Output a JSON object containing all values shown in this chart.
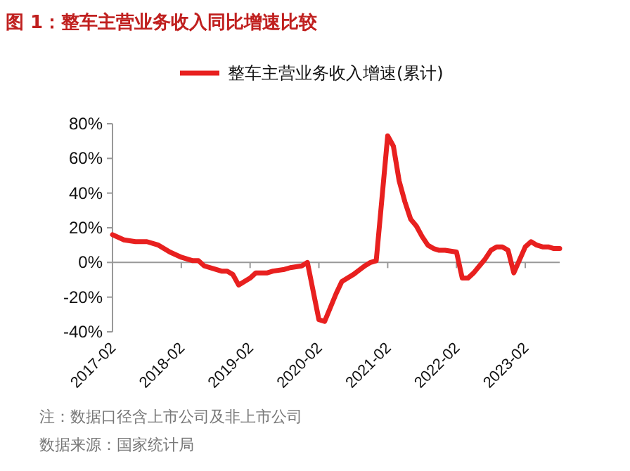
{
  "chart_data": {
    "type": "line",
    "title": "图 1：整车主营业务收入同比增速比较",
    "series": [
      {
        "name": "整车主营业务收入增速(累计)",
        "color": "#e8201f",
        "x": [
          "2017-02",
          "2017-04",
          "2017-06",
          "2017-08",
          "2017-10",
          "2017-12",
          "2018-02",
          "2018-04",
          "2018-05",
          "2018-06",
          "2018-08",
          "2018-09",
          "2018-10",
          "2018-11",
          "2018-12",
          "2019-02",
          "2019-03",
          "2019-05",
          "2019-06",
          "2019-08",
          "2019-09",
          "2019-11",
          "2019-12",
          "2020-02",
          "2020-03",
          "2020-04",
          "2020-05",
          "2020-06",
          "2020-08",
          "2020-10",
          "2020-11",
          "2020-12",
          "2021-02",
          "2021-03",
          "2021-04",
          "2021-05",
          "2021-06",
          "2021-07",
          "2021-08",
          "2021-09",
          "2021-10",
          "2021-11",
          "2021-12",
          "2022-02",
          "2022-03",
          "2022-04",
          "2022-05",
          "2022-06",
          "2022-07",
          "2022-08",
          "2022-09",
          "2022-10",
          "2022-11",
          "2022-12",
          "2023-02",
          "2023-03",
          "2023-04",
          "2023-05",
          "2023-06",
          "2023-07",
          "2023-08"
        ],
        "values": [
          16,
          13,
          12,
          12,
          10,
          6,
          3,
          1,
          1,
          -2,
          -4,
          -5,
          -5,
          -7,
          -13,
          -9,
          -6,
          -6,
          -5,
          -4,
          -3,
          -2,
          0,
          -33,
          -34,
          -26,
          -18,
          -11,
          -7,
          -2,
          0,
          1,
          73,
          67,
          47,
          35,
          25,
          21,
          15,
          10,
          8,
          7,
          7,
          6,
          -9,
          -9,
          -6,
          -2,
          2,
          7,
          9,
          9,
          7,
          -6,
          9,
          12,
          10,
          9,
          9,
          8,
          8
        ]
      }
    ],
    "xlim": [
      "2017-02",
      "2023-08"
    ],
    "xticks": [
      {
        "value": "2017-02",
        "label": "2017-02"
      },
      {
        "value": "2018-02",
        "label": "2018-02"
      },
      {
        "value": "2019-02",
        "label": "2019-02"
      },
      {
        "value": "2020-02",
        "label": "2020-02"
      },
      {
        "value": "2021-02",
        "label": "2021-02"
      },
      {
        "value": "2022-02",
        "label": "2022-02"
      },
      {
        "value": "2023-02",
        "label": "2023-02"
      }
    ],
    "ylim": [
      -40,
      80
    ],
    "yticks": [
      {
        "value": -40,
        "label": "-40%"
      },
      {
        "value": -20,
        "label": "-20%"
      },
      {
        "value": 0,
        "label": "0%"
      },
      {
        "value": 20,
        "label": "20%"
      },
      {
        "value": 40,
        "label": "40%"
      },
      {
        "value": 60,
        "label": "60%"
      },
      {
        "value": 80,
        "label": "80%"
      }
    ],
    "ref_lines": [
      {
        "axis": "y",
        "value": 0,
        "color": "#999999",
        "line_style": "solid"
      }
    ],
    "grid": false,
    "legend": "top",
    "marker": "none",
    "line_style": "solid",
    "annotations": [
      "注：数据口径含上市公司及非上市公司",
      "数据来源：国家统计局"
    ]
  }
}
